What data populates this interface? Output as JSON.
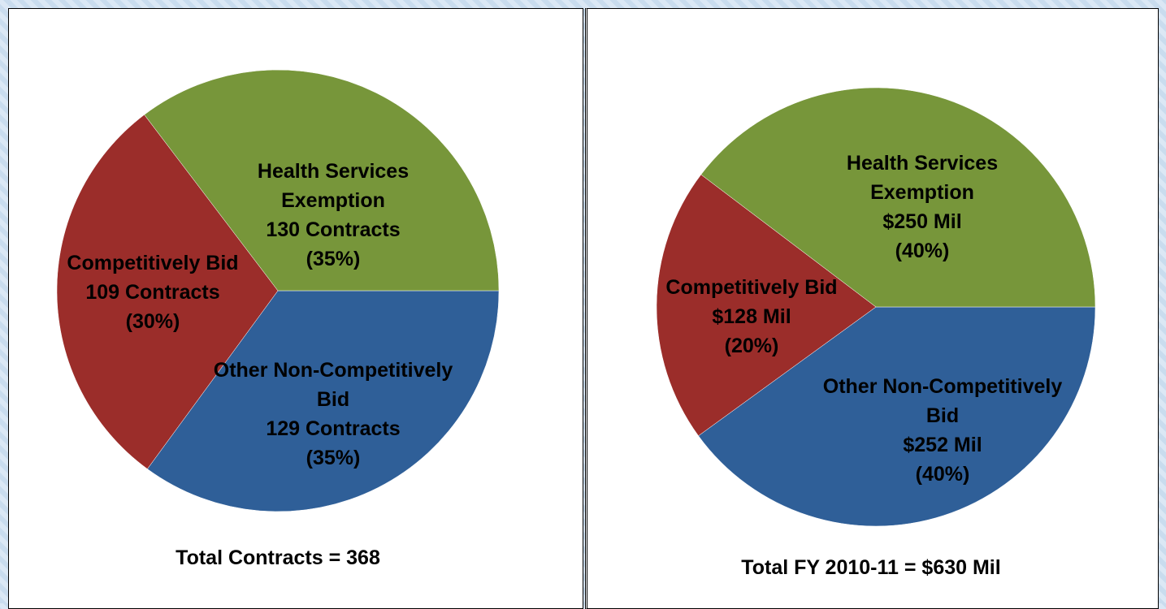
{
  "chart_data": [
    {
      "type": "pie",
      "categories": [
        "Other Non-Competitively Bid",
        "Competitively Bid",
        "Health Services Exemption"
      ],
      "values": [
        129,
        109,
        130
      ],
      "value_labels": [
        "129 Contracts",
        "109 Contracts",
        "130 Contracts"
      ],
      "share_labels": [
        "(35%)",
        "(30%)",
        "(35%)"
      ],
      "colors": [
        "#2f5f98",
        "#9b2d2a",
        "#77963a"
      ],
      "caption": "Total Contracts = 368"
    },
    {
      "type": "pie",
      "categories": [
        "Other Non-Competitively Bid",
        "Competitively Bid",
        "Health Services Exemption"
      ],
      "values": [
        252,
        128,
        250
      ],
      "value_labels": [
        "$252 Mil",
        "$128 Mil",
        "$250 Mil"
      ],
      "share_labels": [
        "(40%)",
        "(20%)",
        "(40%)"
      ],
      "colors": [
        "#2f5f98",
        "#9b2d2a",
        "#77963a"
      ],
      "caption": "Total FY 2010-11 = $630 Mil"
    }
  ]
}
